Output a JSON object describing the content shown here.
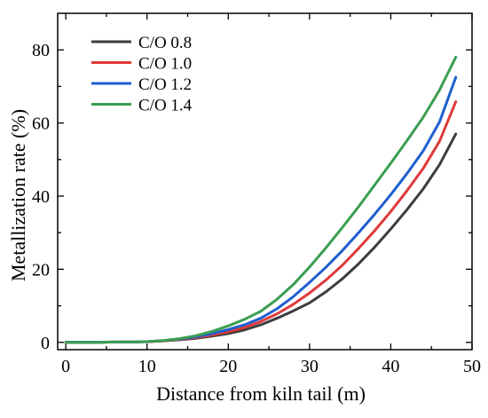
{
  "chart_data": {
    "type": "line",
    "title": "",
    "xlabel": "Distance from kiln tail (m)",
    "ylabel": "Metallization rate (%)",
    "xlim": [
      -1,
      50
    ],
    "ylim": [
      -2,
      90
    ],
    "xticks": [
      0,
      10,
      20,
      30,
      40,
      50
    ],
    "yticks": [
      0,
      20,
      40,
      60,
      80
    ],
    "grid": false,
    "legend_position": "top-left",
    "x": [
      0,
      2,
      4,
      6,
      8,
      10,
      12,
      14,
      16,
      18,
      20,
      22,
      24,
      26,
      28,
      30,
      32,
      34,
      36,
      38,
      40,
      42,
      44,
      46,
      48
    ],
    "series": [
      {
        "name": "C/O 0.8",
        "color": "#3d3d3d",
        "values": [
          0,
          0,
          0,
          0.1,
          0.1,
          0.2,
          0.4,
          0.7,
          1.1,
          1.7,
          2.4,
          3.4,
          4.8,
          6.6,
          8.6,
          10.8,
          13.8,
          17.3,
          21.4,
          26.0,
          31.0,
          36.3,
          42.0,
          48.6,
          57.0
        ]
      },
      {
        "name": "C/O 1.0",
        "color": "#e03a3a",
        "values": [
          0,
          0,
          0,
          0.1,
          0.1,
          0.2,
          0.4,
          0.8,
          1.3,
          2.0,
          2.9,
          4.1,
          5.7,
          7.8,
          10.4,
          13.5,
          17.0,
          21.0,
          25.6,
          30.5,
          35.8,
          41.5,
          47.6,
          55.0,
          65.8
        ]
      },
      {
        "name": "C/O 1.2",
        "color": "#1f5fcf",
        "values": [
          0,
          0,
          0,
          0.1,
          0.1,
          0.2,
          0.5,
          0.9,
          1.5,
          2.4,
          3.5,
          4.8,
          6.6,
          9.2,
          12.5,
          16.4,
          20.5,
          25.0,
          29.9,
          35.0,
          40.4,
          46.2,
          52.4,
          60.3,
          72.5
        ]
      },
      {
        "name": "C/O 1.4",
        "color": "#3a9e50",
        "values": [
          0,
          0,
          0,
          0.1,
          0.1,
          0.2,
          0.5,
          1.0,
          1.8,
          3.0,
          4.5,
          6.3,
          8.5,
          11.8,
          15.8,
          20.6,
          25.8,
          31.3,
          37.0,
          43.0,
          49.0,
          55.2,
          61.6,
          69.0,
          78.0
        ]
      }
    ]
  }
}
